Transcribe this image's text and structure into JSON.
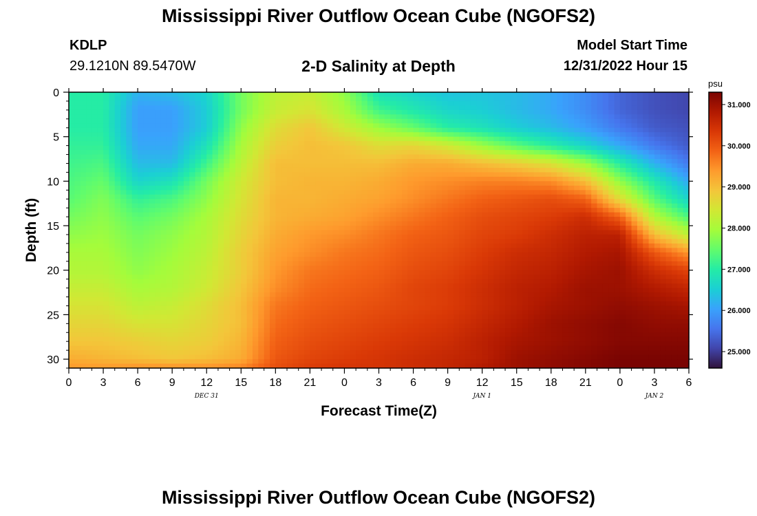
{
  "header": {
    "title": "Mississippi River Outflow Ocean Cube (NGOFS2)",
    "station": "KDLP",
    "coords": "29.1210N  89.5470W",
    "subtitle": "2-D Salinity at Depth",
    "model_start_label": "Model Start Time",
    "model_start_value": "12/31/2022 Hour 15"
  },
  "second_panel_title": "Mississippi River Outflow Ocean Cube (NGOFS2)",
  "chart_data": {
    "type": "heatmap",
    "title": "2-D Salinity at Depth",
    "xlabel": "Forecast Time(Z)",
    "ylabel": "Depth (ft)",
    "x_ticks": [
      "0",
      "3",
      "6",
      "9",
      "12",
      "15",
      "18",
      "21",
      "0",
      "3",
      "6",
      "9",
      "12",
      "15",
      "18",
      "21",
      "0",
      "3",
      "6"
    ],
    "x_range": [
      0,
      54
    ],
    "date_labels": [
      {
        "text": "DEC 31",
        "at_hour": 12
      },
      {
        "text": "JAN 1",
        "at_hour": 36
      },
      {
        "text": "JAN 2",
        "at_hour": 51
      }
    ],
    "y_ticks": [
      0,
      5,
      10,
      15,
      20,
      25,
      30
    ],
    "y_range": [
      0,
      31
    ],
    "y_inverted": true,
    "colorbar": {
      "units": "psu",
      "min": 24.6,
      "max": 31.3,
      "ticks": [
        "31.000",
        "30.000",
        "29.000",
        "28.000",
        "27.000",
        "26.000",
        "25.000"
      ],
      "colors": [
        "#30123b",
        "#4145ab",
        "#4675ed",
        "#39a2fc",
        "#1bcfd4",
        "#24eca6",
        "#61fc6c",
        "#a4fc3b",
        "#d1e834",
        "#f3c63a",
        "#fe9b2d",
        "#f36315",
        "#d93806",
        "#b11901",
        "#7a0402"
      ]
    },
    "salinity_profiles": {
      "hours": [
        0,
        3,
        6,
        9,
        12,
        15,
        18,
        21,
        24,
        27,
        30,
        33,
        36,
        39,
        42,
        45,
        48,
        51,
        54
      ],
      "depths": [
        0,
        2,
        4,
        6,
        8,
        10,
        12,
        14,
        16,
        18,
        20,
        22,
        24,
        26,
        28,
        30,
        31
      ],
      "values": [
        [
          27.0,
          27.0,
          27.0,
          27.1,
          27.2,
          27.3,
          27.4,
          27.6,
          27.8,
          28.0,
          28.1,
          28.3,
          28.5,
          28.7,
          28.9,
          29.2,
          29.4
        ],
        [
          27.0,
          27.0,
          27.0,
          27.1,
          27.3,
          27.5,
          27.7,
          27.8,
          27.9,
          28.0,
          28.1,
          28.3,
          28.5,
          28.7,
          28.9,
          29.1,
          29.4
        ],
        [
          26.2,
          26.0,
          26.0,
          26.1,
          26.3,
          26.6,
          27.1,
          27.4,
          27.6,
          27.7,
          27.8,
          28.0,
          28.2,
          28.5,
          28.8,
          29.0,
          29.5
        ],
        [
          26.3,
          26.0,
          26.0,
          26.1,
          26.3,
          26.8,
          27.3,
          27.6,
          27.8,
          27.9,
          28.0,
          28.1,
          28.3,
          28.5,
          28.7,
          28.9,
          29.5
        ],
        [
          26.6,
          26.5,
          26.5,
          26.8,
          27.2,
          27.6,
          27.8,
          28.0,
          28.1,
          28.2,
          28.3,
          28.4,
          28.6,
          28.7,
          28.8,
          29.0,
          29.5
        ],
        [
          27.6,
          27.6,
          27.8,
          28.0,
          28.2,
          28.4,
          28.5,
          28.6,
          28.7,
          28.8,
          28.8,
          28.9,
          29.0,
          29.0,
          29.1,
          29.2,
          29.6
        ],
        [
          28.2,
          28.3,
          28.6,
          28.8,
          29.0,
          29.0,
          29.1,
          29.1,
          29.2,
          29.3,
          29.4,
          29.5,
          29.7,
          29.8,
          29.9,
          30.0,
          30.1
        ],
        [
          28.3,
          28.5,
          28.9,
          29.0,
          29.0,
          29.1,
          29.1,
          29.2,
          29.4,
          29.5,
          29.7,
          29.8,
          29.9,
          30.0,
          30.1,
          30.2,
          30.3
        ],
        [
          27.8,
          28.0,
          28.4,
          28.9,
          29.0,
          29.1,
          29.2,
          29.3,
          29.5,
          29.7,
          29.8,
          29.9,
          30.0,
          30.1,
          30.2,
          30.3,
          30.4
        ],
        [
          26.8,
          27.2,
          27.9,
          28.6,
          29.0,
          29.2,
          29.3,
          29.5,
          29.7,
          29.8,
          29.9,
          30.0,
          30.1,
          30.2,
          30.3,
          30.4,
          30.4
        ],
        [
          26.6,
          26.9,
          27.5,
          28.7,
          29.2,
          29.4,
          29.5,
          29.7,
          29.9,
          30.0,
          30.1,
          30.2,
          30.2,
          30.3,
          30.4,
          30.5,
          30.5
        ],
        [
          26.4,
          26.6,
          27.0,
          28.4,
          29.2,
          29.5,
          29.7,
          29.9,
          30.0,
          30.1,
          30.2,
          30.3,
          30.3,
          30.4,
          30.5,
          30.6,
          30.6
        ],
        [
          26.4,
          26.5,
          26.8,
          27.9,
          29.0,
          29.6,
          29.9,
          30.1,
          30.2,
          30.3,
          30.4,
          30.5,
          30.5,
          30.6,
          30.7,
          30.7,
          30.8
        ],
        [
          26.3,
          26.3,
          26.5,
          27.4,
          28.8,
          29.6,
          30.0,
          30.2,
          30.3,
          30.5,
          30.6,
          30.7,
          30.7,
          30.8,
          30.9,
          31.0,
          31.0
        ],
        [
          26.1,
          26.1,
          26.3,
          27.0,
          28.5,
          29.5,
          30.1,
          30.3,
          30.5,
          30.6,
          30.7,
          30.8,
          30.9,
          31.0,
          31.0,
          31.1,
          31.1
        ],
        [
          25.8,
          25.8,
          26.0,
          26.6,
          27.9,
          29.0,
          29.9,
          30.5,
          30.7,
          30.8,
          30.9,
          31.0,
          31.0,
          31.1,
          31.1,
          31.2,
          31.2
        ],
        [
          25.4,
          25.4,
          25.6,
          26.1,
          27.0,
          27.8,
          28.6,
          29.9,
          30.7,
          30.9,
          31.0,
          31.0,
          31.1,
          31.2,
          31.2,
          31.3,
          31.3
        ],
        [
          25.2,
          25.2,
          25.3,
          25.6,
          26.2,
          26.9,
          27.4,
          28.1,
          29.0,
          30.0,
          30.5,
          30.8,
          31.0,
          31.1,
          31.2,
          31.3,
          31.3
        ],
        [
          25.1,
          25.1,
          25.2,
          25.3,
          25.6,
          26.1,
          26.6,
          27.3,
          28.2,
          29.4,
          30.2,
          30.6,
          30.9,
          31.1,
          31.2,
          31.3,
          31.3
        ]
      ]
    }
  }
}
